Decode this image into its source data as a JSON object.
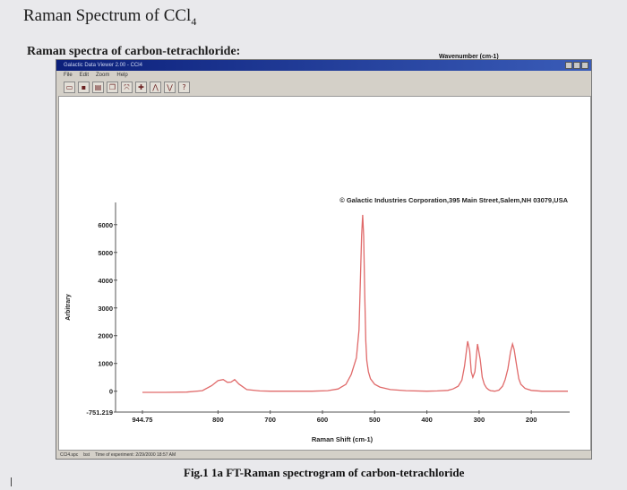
{
  "page": {
    "title": "Raman Spectrum of CCl",
    "title_sub": "4",
    "subtitle": "Raman spectra of carbon-tetrachloride:",
    "wavenumber_note": "Wavenumber (cm-1)",
    "caption": "Fig.1 1a FT-Raman spectrogram of carbon-tetrachloride"
  },
  "window": {
    "title": "Galactic Data Viewer 2.00 - CCl4",
    "menu": [
      "File",
      "Edit",
      "Zoom",
      "Help"
    ],
    "toolbar_icons": [
      "open-icon",
      "save-icon",
      "print-icon",
      "copy-icon",
      "zoom-icon",
      "cross-icon",
      "peak-icon",
      "baseline-icon",
      "help-icon"
    ],
    "status": [
      "CCl4.spc",
      "bst",
      "Time of experiment: 2/29/2000 18:57 AM"
    ]
  },
  "chart_data": {
    "type": "line",
    "copyright": "© Galactic Industries Corporation,395 Main Street,Salem,NH 03079,USA",
    "xlabel": "Raman Shift (cm-1)",
    "ylabel": "Arbitrary",
    "xlim": [
      944.75,
      130
    ],
    "ylim": [
      -751.219,
      6800
    ],
    "x_ticks": [
      "944.75",
      "800",
      "700",
      "600",
      "500",
      "400",
      "300",
      "200"
    ],
    "x_tick_values": [
      944.75,
      800,
      700,
      600,
      500,
      400,
      300,
      200
    ],
    "y_ticks": [
      "6000",
      "5000",
      "4000",
      "3000",
      "2000",
      "1000",
      "0",
      "-751.219"
    ],
    "y_tick_values": [
      6000,
      5000,
      4000,
      3000,
      2000,
      1000,
      0,
      -751.219
    ],
    "line_color": "#e06a6a",
    "series": [
      {
        "x": [
          944.75,
          900,
          860,
          830,
          812,
          800,
          790,
          782,
          775,
          768,
          760,
          745,
          720,
          700,
          660,
          620,
          590,
          570,
          555,
          545,
          535,
          530,
          528,
          525,
          523,
          521,
          519,
          517,
          515,
          512,
          508,
          500,
          490,
          470,
          440,
          400,
          380,
          360,
          350,
          340,
          333,
          328,
          322,
          318,
          315,
          312,
          308,
          303,
          298,
          294,
          290,
          286,
          282,
          278,
          270,
          262,
          255,
          250,
          245,
          240,
          236,
          233,
          228,
          224,
          220,
          212,
          200,
          180,
          160,
          140,
          130
        ],
        "y": [
          -40,
          -40,
          -30,
          20,
          200,
          380,
          420,
          320,
          330,
          420,
          260,
          60,
          10,
          0,
          0,
          0,
          20,
          80,
          250,
          600,
          1200,
          2200,
          3600,
          5600,
          6350,
          5600,
          3500,
          1800,
          1100,
          700,
          450,
          250,
          150,
          60,
          20,
          0,
          10,
          30,
          80,
          180,
          400,
          900,
          1800,
          1450,
          700,
          500,
          700,
          1700,
          1150,
          500,
          250,
          120,
          60,
          20,
          0,
          40,
          180,
          420,
          800,
          1400,
          1700,
          1500,
          900,
          450,
          250,
          100,
          30,
          0,
          0,
          0,
          0
        ]
      }
    ]
  }
}
